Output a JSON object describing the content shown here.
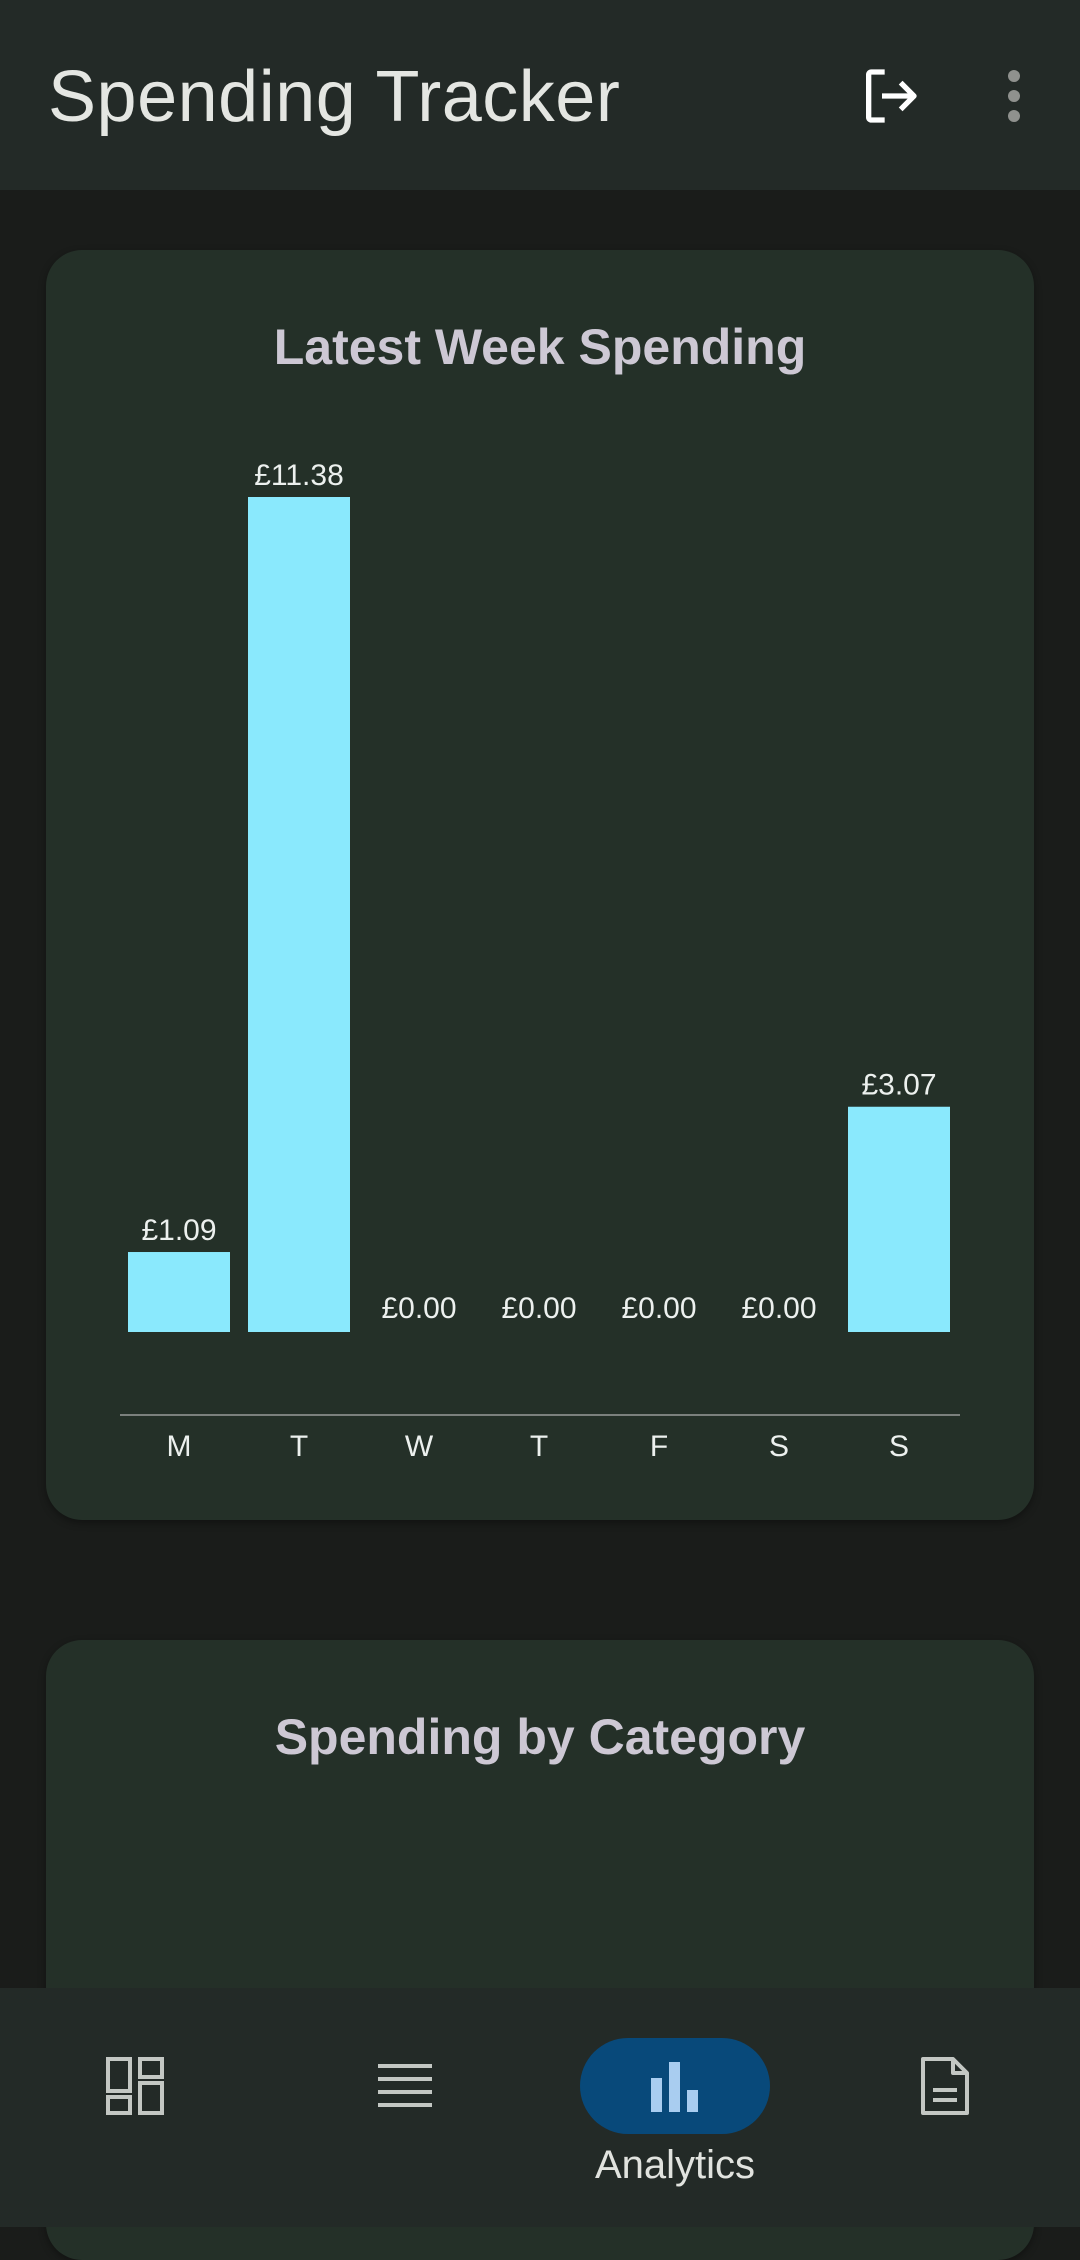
{
  "app_bar": {
    "title": "Spending Tracker",
    "logout_icon": "logout-icon",
    "more_icon": "more-vert-icon"
  },
  "week_card": {
    "title": "Latest Week Spending"
  },
  "category_card": {
    "title": "Spending by Category"
  },
  "chart_data": {
    "type": "bar",
    "categories": [
      "M",
      "T",
      "W",
      "T",
      "F",
      "S",
      "S"
    ],
    "values": [
      1.09,
      11.38,
      0.0,
      0.0,
      0.0,
      0.0,
      3.07
    ],
    "data_labels": [
      "£1.09",
      "£11.38",
      "£0.00",
      "£0.00",
      "£0.00",
      "£0.00",
      "£3.07"
    ],
    "ylim": [
      0,
      11.38
    ],
    "grid": false,
    "bar_color": "#8ae9fd"
  },
  "bottom_nav": {
    "items": [
      {
        "icon": "dashboard-icon",
        "label": "",
        "active": false
      },
      {
        "icon": "list-icon",
        "label": "",
        "active": false
      },
      {
        "icon": "bar-chart-icon",
        "label": "Analytics",
        "active": true
      },
      {
        "icon": "document-icon",
        "label": "",
        "active": false
      }
    ]
  },
  "colors": {
    "background": "#1a1c1a",
    "surface": "#243028",
    "app_bar": "#232a27",
    "accent": "#08497a",
    "bar": "#8ae9fd"
  }
}
